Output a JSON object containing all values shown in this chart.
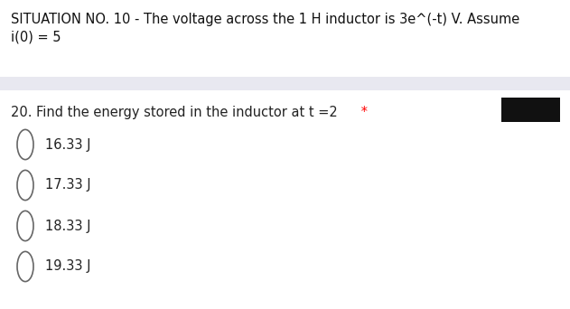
{
  "header_line1": "SITUATION NO. 10 - The voltage across the 1 H inductor is 3e^(-t) V. Assume",
  "header_line2": "i(0) = 5",
  "divider_color": "#e8e8f0",
  "question": "20. Find the energy stored in the inductor at t =2",
  "question_star": " *",
  "star_color": "#ff0000",
  "options": [
    "16.33 J",
    "17.33 J",
    "18.33 J",
    "19.33 J"
  ],
  "option_text_color": "#222222",
  "header_text_color": "#111111",
  "bg_color": "#ffffff",
  "circle_color": "#666666",
  "black_box_color": "#111111",
  "font_size_header": 10.5,
  "font_size_question": 10.5,
  "font_size_options": 10.5
}
